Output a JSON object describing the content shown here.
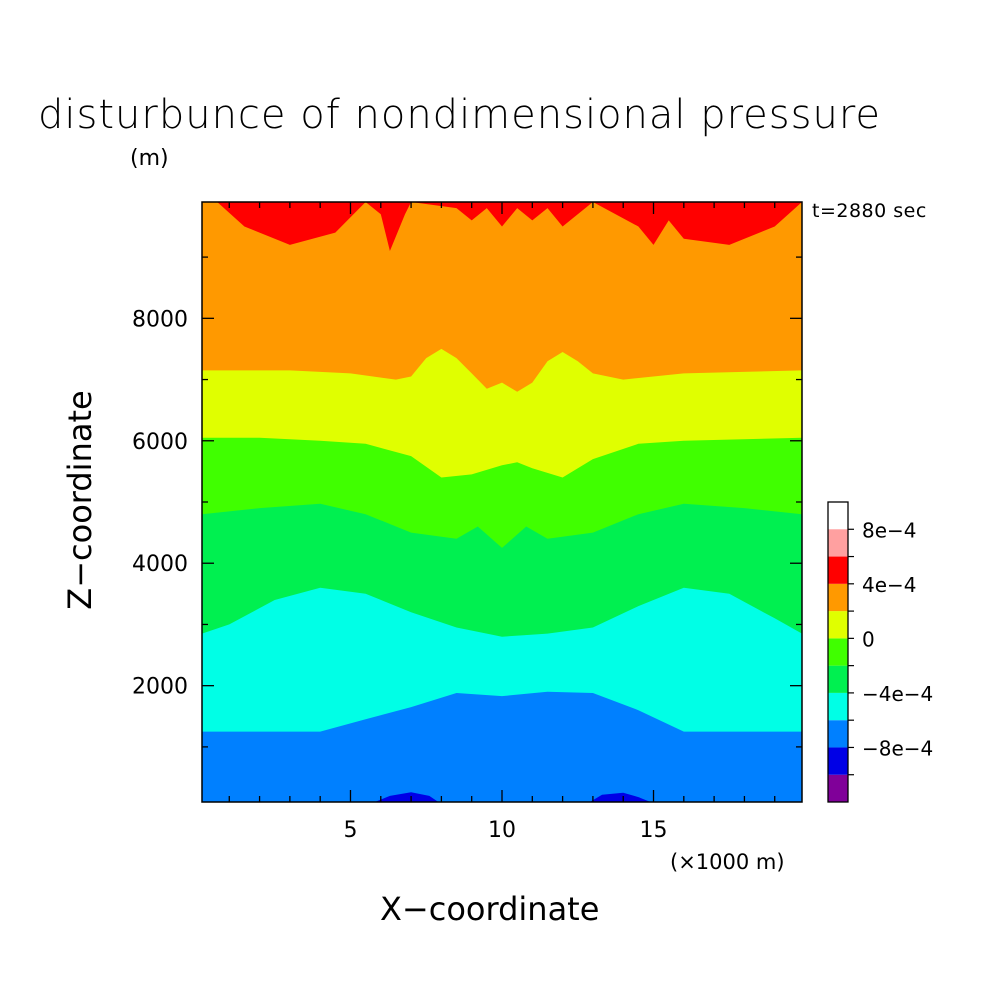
{
  "chart_data": {
    "type": "heatmap",
    "title": "disturbunce of nondimensional pressure",
    "ylabel": "Z−coordinate",
    "xlabel": "X−coordinate",
    "y_unit": "(m)",
    "x_unit": "(×1000 m)",
    "annotation": "t=2880 sec",
    "xlim": [
      0.1,
      19.9
    ],
    "ylim": [
      100,
      9900
    ],
    "x_ticks": [
      {
        "value": 5,
        "label": "5"
      },
      {
        "value": 10,
        "label": "10"
      },
      {
        "value": 15,
        "label": "15"
      }
    ],
    "y_ticks": [
      {
        "value": 2000,
        "label": "2000"
      },
      {
        "value": 4000,
        "label": "4000"
      },
      {
        "value": 6000,
        "label": "6000"
      },
      {
        "value": 8000,
        "label": "8000"
      }
    ],
    "colorbar": {
      "levels": [
        -0.0012,
        -0.001,
        -0.0008,
        -0.0006,
        -0.0004,
        -0.0002,
        0,
        0.0002,
        0.0004,
        0.0006,
        0.0008,
        0.001
      ],
      "colors": [
        "#800099",
        "#0000e6",
        "#0080ff",
        "#00ffe6",
        "#00f050",
        "#40ff00",
        "#e0ff00",
        "#ff9900",
        "#ff0000",
        "#ffa0a0"
      ],
      "tick_labels": [
        {
          "value": -0.0008,
          "label": "−8e−4"
        },
        {
          "value": -0.0004,
          "label": "−4e−4"
        },
        {
          "value": 0,
          "label": "0"
        },
        {
          "value": 0.0004,
          "label": "4e−4"
        },
        {
          "value": 0.0008,
          "label": "8e−4"
        }
      ]
    },
    "contour_boundaries": [
      {
        "name": "b0",
        "points": [
          [
            5.8,
            100
          ],
          [
            6.3,
            200
          ],
          [
            7.0,
            260
          ],
          [
            7.6,
            200
          ],
          [
            7.9,
            100
          ]
        ]
      },
      {
        "name": "b0r",
        "points": [
          [
            12.9,
            100
          ],
          [
            13.3,
            220
          ],
          [
            14.0,
            250
          ],
          [
            14.5,
            180
          ],
          [
            14.9,
            100
          ]
        ]
      },
      {
        "name": "b1",
        "points": [
          [
            0.1,
            1250
          ],
          [
            4.0,
            1250
          ],
          [
            5.5,
            1450
          ],
          [
            7.0,
            1650
          ],
          [
            8.5,
            1880
          ],
          [
            10.0,
            1830
          ],
          [
            11.5,
            1900
          ],
          [
            13.0,
            1880
          ],
          [
            14.5,
            1600
          ],
          [
            16.0,
            1250
          ],
          [
            19.9,
            1250
          ]
        ]
      },
      {
        "name": "b2",
        "points": [
          [
            0.1,
            2850
          ],
          [
            1.0,
            3000
          ],
          [
            2.5,
            3400
          ],
          [
            4.0,
            3600
          ],
          [
            5.5,
            3500
          ],
          [
            7.0,
            3200
          ],
          [
            8.5,
            2950
          ],
          [
            10.0,
            2800
          ],
          [
            11.5,
            2850
          ],
          [
            13.0,
            2950
          ],
          [
            14.5,
            3300
          ],
          [
            16.0,
            3600
          ],
          [
            17.5,
            3500
          ],
          [
            19.0,
            3100
          ],
          [
            19.9,
            2850
          ]
        ]
      },
      {
        "name": "b3",
        "points": [
          [
            0.1,
            4800
          ],
          [
            2.0,
            4900
          ],
          [
            4.0,
            4970
          ],
          [
            5.5,
            4800
          ],
          [
            7.0,
            4500
          ],
          [
            8.5,
            4400
          ],
          [
            9.2,
            4600
          ],
          [
            10.0,
            4250
          ],
          [
            10.8,
            4600
          ],
          [
            11.5,
            4400
          ],
          [
            13.0,
            4500
          ],
          [
            14.5,
            4800
          ],
          [
            16.0,
            4970
          ],
          [
            18.0,
            4900
          ],
          [
            19.9,
            4800
          ]
        ]
      },
      {
        "name": "b4",
        "points": [
          [
            0.1,
            6050
          ],
          [
            2.0,
            6050
          ],
          [
            4.0,
            6000
          ],
          [
            5.5,
            5950
          ],
          [
            7.0,
            5750
          ],
          [
            8.0,
            5400
          ],
          [
            9.0,
            5450
          ],
          [
            10.0,
            5600
          ],
          [
            10.5,
            5650
          ],
          [
            11.0,
            5550
          ],
          [
            12.0,
            5400
          ],
          [
            13.0,
            5700
          ],
          [
            14.5,
            5950
          ],
          [
            16.0,
            6000
          ],
          [
            19.9,
            6050
          ]
        ]
      },
      {
        "name": "b5",
        "points": [
          [
            0.1,
            7150
          ],
          [
            3.0,
            7150
          ],
          [
            5.0,
            7100
          ],
          [
            6.5,
            7000
          ],
          [
            7.0,
            7050
          ],
          [
            7.5,
            7350
          ],
          [
            8.0,
            7500
          ],
          [
            8.5,
            7350
          ],
          [
            9.0,
            7100
          ],
          [
            9.5,
            6850
          ],
          [
            10.0,
            6950
          ],
          [
            10.5,
            6800
          ],
          [
            11.0,
            6950
          ],
          [
            11.5,
            7300
          ],
          [
            12.0,
            7450
          ],
          [
            12.5,
            7300
          ],
          [
            13.0,
            7100
          ],
          [
            14.0,
            7000
          ],
          [
            16.0,
            7100
          ],
          [
            19.9,
            7150
          ]
        ]
      },
      {
        "name": "b6",
        "points": [
          [
            0.6,
            9900
          ],
          [
            1.5,
            9500
          ],
          [
            3.0,
            9200
          ],
          [
            4.5,
            9400
          ],
          [
            5.5,
            9900
          ],
          [
            6.0,
            9700
          ],
          [
            6.3,
            9100
          ],
          [
            6.8,
            9700
          ],
          [
            7.0,
            9900
          ],
          [
            8.5,
            9800
          ],
          [
            9.0,
            9600
          ],
          [
            9.5,
            9800
          ],
          [
            10.0,
            9500
          ],
          [
            10.5,
            9800
          ],
          [
            11.0,
            9600
          ],
          [
            11.5,
            9800
          ],
          [
            12.0,
            9500
          ],
          [
            13.0,
            9900
          ],
          [
            14.5,
            9500
          ],
          [
            15.0,
            9200
          ],
          [
            15.5,
            9600
          ],
          [
            16.0,
            9300
          ],
          [
            17.5,
            9200
          ],
          [
            19.0,
            9500
          ],
          [
            19.9,
            9900
          ]
        ]
      }
    ]
  }
}
